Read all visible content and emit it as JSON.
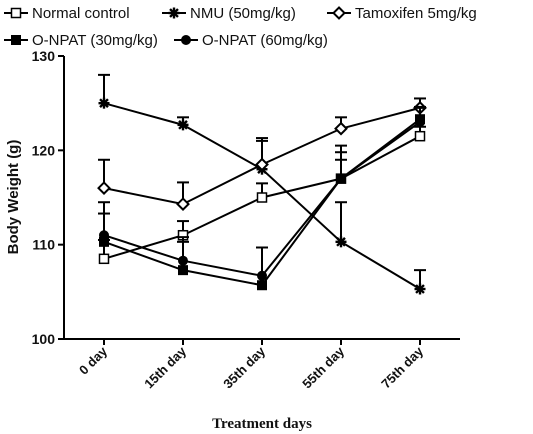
{
  "chart_data": {
    "type": "line",
    "xlabel": "Treatment days",
    "ylabel": "Body Weight (g)",
    "categories": [
      "0 day",
      "15th day",
      "35th day",
      "55th day",
      "75th day"
    ],
    "ylim": [
      100,
      130
    ],
    "yticks": [
      100,
      110,
      120,
      130
    ],
    "grid": false,
    "legend_position": "top",
    "series": [
      {
        "name": "Normal control",
        "marker": "open-square",
        "values": [
          108.5,
          111.0,
          115.0,
          117.0,
          121.5
        ],
        "errors": [
          2.0,
          1.5,
          1.5,
          2.0,
          1.0
        ]
      },
      {
        "name": "NMU (50mg/kg)",
        "marker": "star",
        "values": [
          125.0,
          122.7,
          118.0,
          110.3,
          105.3
        ],
        "errors": [
          3.0,
          0.8,
          3.0,
          4.2,
          2.0
        ]
      },
      {
        "name": "Tamoxifen 5mg/kg",
        "marker": "open-diamond",
        "values": [
          116.0,
          114.3,
          118.5,
          122.3,
          124.5
        ],
        "errors": [
          3.0,
          2.3,
          2.8,
          1.2,
          1.0
        ]
      },
      {
        "name": "O-NPAT (30mg/kg)",
        "marker": "filled-square",
        "values": [
          110.3,
          107.3,
          105.7,
          117.0,
          123.3
        ],
        "errors": [
          3.0,
          3.0,
          4.0,
          2.8,
          1.3
        ]
      },
      {
        "name": "O-NPAT (60mg/kg)",
        "marker": "filled-circle",
        "values": [
          111.0,
          108.3,
          106.7,
          117.0,
          123.0
        ],
        "errors": [
          3.5,
          2.5,
          3.0,
          3.5,
          1.5
        ]
      }
    ]
  }
}
